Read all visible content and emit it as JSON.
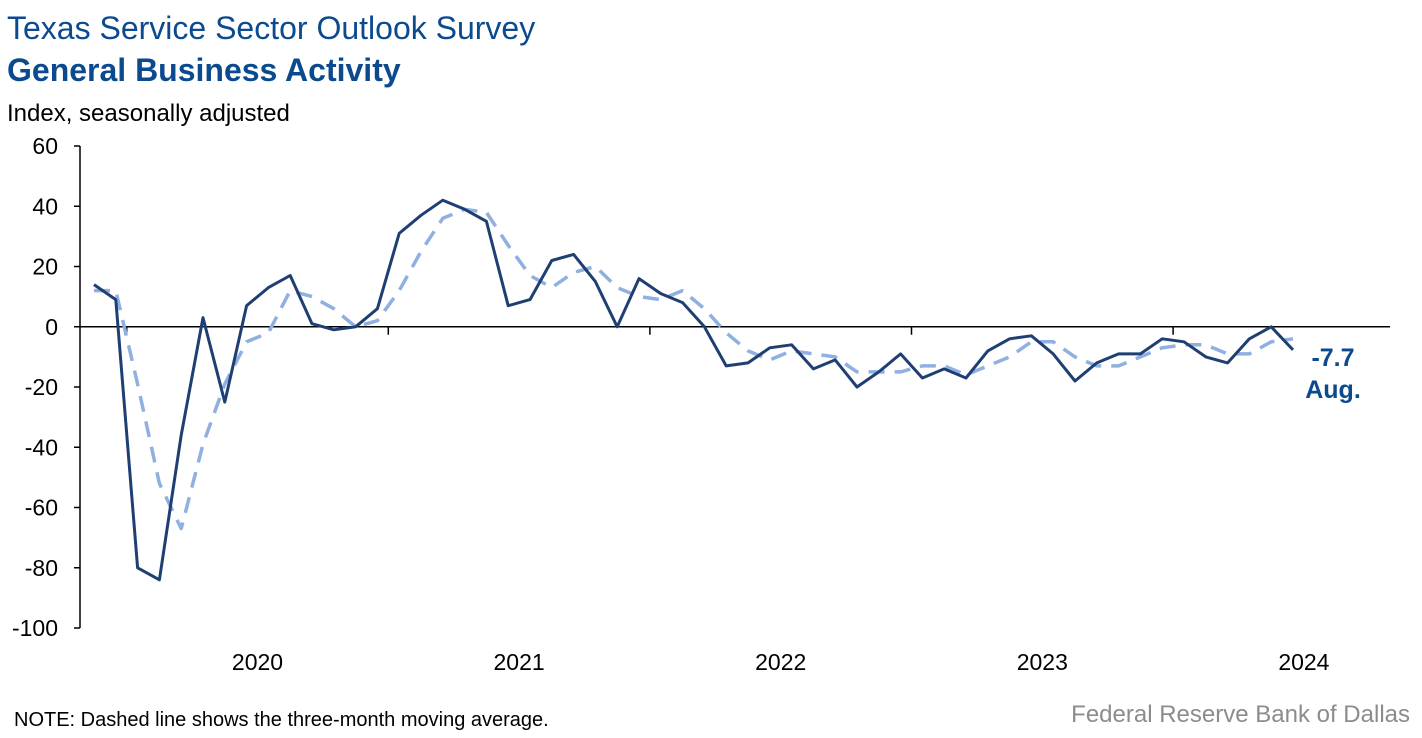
{
  "header": {
    "title": "Texas Service Sector Outlook Survey",
    "subtitle": "General Business Activity",
    "unit_label": "Index, seasonally adjusted"
  },
  "footer": {
    "note": "NOTE: Dashed line shows the three-month moving average.",
    "source": "Federal Reserve Bank of Dallas"
  },
  "annotation": {
    "value": "-7.7",
    "month": "Aug."
  },
  "colors": {
    "primary": "#1f3f73",
    "moving_average": "#8fb0e0",
    "title": "#0b4a8f",
    "text": "#000000",
    "source": "#8c8c8c"
  },
  "chart_data": {
    "type": "line",
    "ylim": [
      -100,
      60
    ],
    "yticks": [
      "60",
      "40",
      "20",
      "0",
      "-20",
      "-40",
      "-60",
      "-80",
      "-100"
    ],
    "ytick_values": [
      60,
      40,
      20,
      0,
      -20,
      -40,
      -60,
      -80,
      -100
    ],
    "year_labels": [
      "2020",
      "2021",
      "2022",
      "2023",
      "2024"
    ],
    "start_month": "2019-11",
    "series": [
      {
        "values": [
          14,
          9,
          -80,
          -84,
          -36,
          3,
          -25,
          7,
          13,
          17,
          1,
          -1,
          0,
          6,
          31,
          37,
          42,
          39,
          35,
          7,
          9,
          22,
          24,
          15,
          0,
          16,
          11,
          8,
          0,
          -13,
          -12,
          -7,
          -6,
          -14,
          -11,
          -20,
          -15,
          -9,
          -17,
          -14,
          -17,
          -8,
          -4,
          -3,
          -9,
          -18,
          -12,
          -9,
          -9,
          -4,
          -5,
          -10,
          -12,
          -4,
          0,
          -7.7
        ]
      },
      {
        "values": [
          12,
          12,
          -19,
          -52,
          -67,
          -39,
          -19,
          -5,
          -2,
          12,
          10,
          6,
          0,
          2,
          12,
          25,
          36,
          39,
          38,
          27,
          17,
          13,
          18,
          20,
          13,
          10,
          9,
          12,
          6,
          -2,
          -8,
          -11,
          -8,
          -9,
          -10,
          -15,
          -15,
          -15,
          -13,
          -13,
          -16,
          -13,
          -10,
          -5,
          -5,
          -10,
          -13,
          -13,
          -10,
          -7,
          -6,
          -6,
          -9,
          -9,
          -5,
          -4
        ]
      }
    ]
  }
}
